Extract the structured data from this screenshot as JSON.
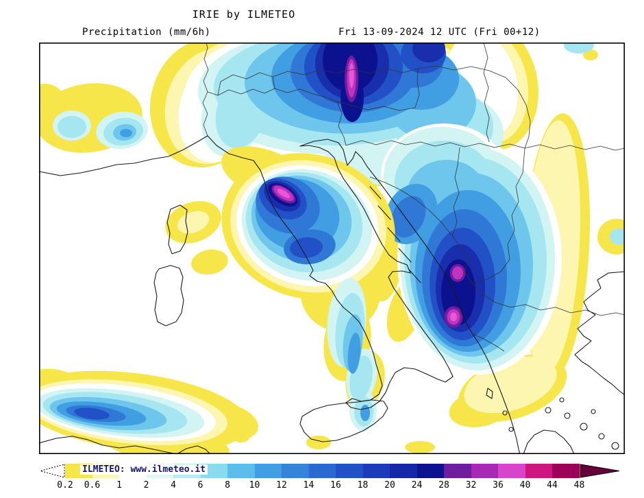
{
  "header": {
    "title": "IRIE by ILMETEO",
    "product_label": "Precipitation (mm/6h)",
    "valid_time_label": "Fri 13-09-2024 12 UTC (Fri 00+12)"
  },
  "legend": {
    "watermark": "ILMETEO: www.ilmeteo.it",
    "ticks": [
      "0.2",
      "0.6",
      "1",
      "2",
      "4",
      "6",
      "8",
      "10",
      "12",
      "14",
      "16",
      "18",
      "20",
      "24",
      "28",
      "32",
      "36",
      "40",
      "44",
      "48"
    ],
    "colors": [
      "#f7e64a",
      "#fcf6b0",
      "#ffffff",
      "#dff8f6",
      "#b4ecf2",
      "#8adaf0",
      "#5cbcea",
      "#429ee2",
      "#3584da",
      "#2a6ad0",
      "#2250c6",
      "#1b3cba",
      "#1427a8",
      "#0c1190",
      "#701c9e",
      "#a82ab4",
      "#d844cc",
      "#cf1680",
      "#9c0058"
    ],
    "left_arrow_color": "#ffffff",
    "right_arrow_color": "#66003a"
  }
}
